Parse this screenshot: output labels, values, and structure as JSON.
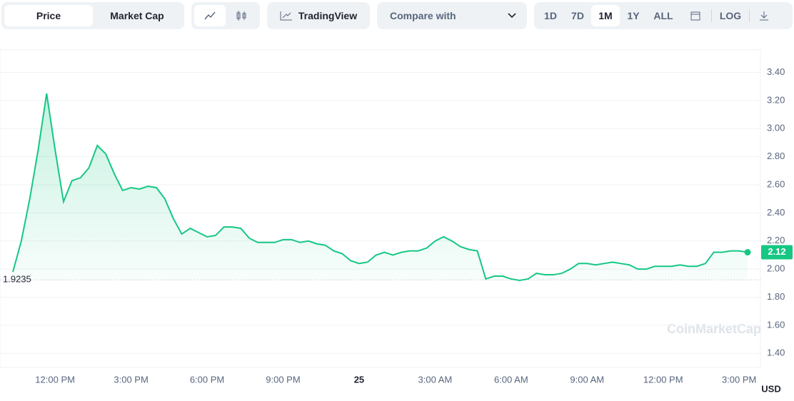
{
  "toolbar": {
    "tabs": [
      "Price",
      "Market Cap"
    ],
    "tradingview": "TradingView",
    "compare": "Compare with",
    "ranges": [
      "1D",
      "7D",
      "1M",
      "1Y",
      "ALL"
    ],
    "log": "LOG"
  },
  "chart_data": {
    "type": "line",
    "categories": [
      null,
      null,
      null,
      null,
      null,
      "12:00 PM",
      null,
      null,
      null,
      null,
      null,
      null,
      null,
      null,
      "3:00 PM",
      null,
      null,
      null,
      null,
      null,
      null,
      null,
      null,
      "6:00 PM",
      null,
      null,
      null,
      null,
      null,
      null,
      null,
      null,
      "9:00 PM",
      null,
      null,
      null,
      null,
      null,
      null,
      null,
      null,
      "25",
      null,
      null,
      null,
      null,
      null,
      null,
      null,
      null,
      "3:00 AM",
      null,
      null,
      null,
      null,
      null,
      null,
      null,
      null,
      "6:00 AM",
      null,
      null,
      null,
      null,
      null,
      null,
      null,
      null,
      "9:00 AM",
      null,
      null,
      null,
      null,
      null,
      null,
      null,
      null,
      "12:00 PM",
      null,
      null,
      null,
      null,
      null,
      null,
      null,
      null,
      "3:00 PM",
      null
    ],
    "series": [
      {
        "color": "#16c784",
        "values": [
          1.98,
          2.2,
          2.5,
          2.85,
          3.25,
          2.85,
          2.48,
          2.63,
          2.65,
          2.72,
          2.88,
          2.82,
          2.68,
          2.56,
          2.58,
          2.57,
          2.59,
          2.58,
          2.5,
          2.36,
          2.25,
          2.29,
          2.26,
          2.23,
          2.24,
          2.3,
          2.3,
          2.29,
          2.22,
          2.19,
          2.19,
          2.19,
          2.21,
          2.21,
          2.19,
          2.2,
          2.18,
          2.17,
          2.13,
          2.11,
          2.06,
          2.04,
          2.05,
          2.1,
          2.12,
          2.1,
          2.12,
          2.13,
          2.13,
          2.15,
          2.2,
          2.23,
          2.2,
          2.16,
          2.14,
          2.13,
          1.93,
          1.95,
          1.95,
          1.93,
          1.92,
          1.93,
          1.97,
          1.96,
          1.96,
          1.97,
          2.0,
          2.04,
          2.04,
          2.03,
          2.04,
          2.05,
          2.04,
          2.03,
          2.0,
          2.0,
          2.02,
          2.02,
          2.02,
          2.03,
          2.02,
          2.02,
          2.04,
          2.12,
          2.12,
          2.13,
          2.13,
          2.12
        ]
      }
    ],
    "reference": 1.9235,
    "ylim": [
      1.3,
      3.55
    ],
    "yticks": [
      {
        "value": 1.4,
        "label": "1.40"
      },
      {
        "value": 1.6,
        "label": "1.60"
      },
      {
        "value": 1.8,
        "label": "1.80"
      },
      {
        "value": 2.0,
        "label": "2.00"
      },
      {
        "value": 2.2,
        "label": "2.20"
      },
      {
        "value": 2.4,
        "label": "2.40"
      },
      {
        "value": 2.6,
        "label": "2.60"
      },
      {
        "value": 2.8,
        "label": "2.80"
      },
      {
        "value": 3.0,
        "label": "3.00"
      },
      {
        "value": 3.2,
        "label": "3.20"
      },
      {
        "value": 3.4,
        "label": "3.40"
      }
    ],
    "grid": true,
    "watermark": "CoinMarketCap",
    "currency": "USD"
  }
}
